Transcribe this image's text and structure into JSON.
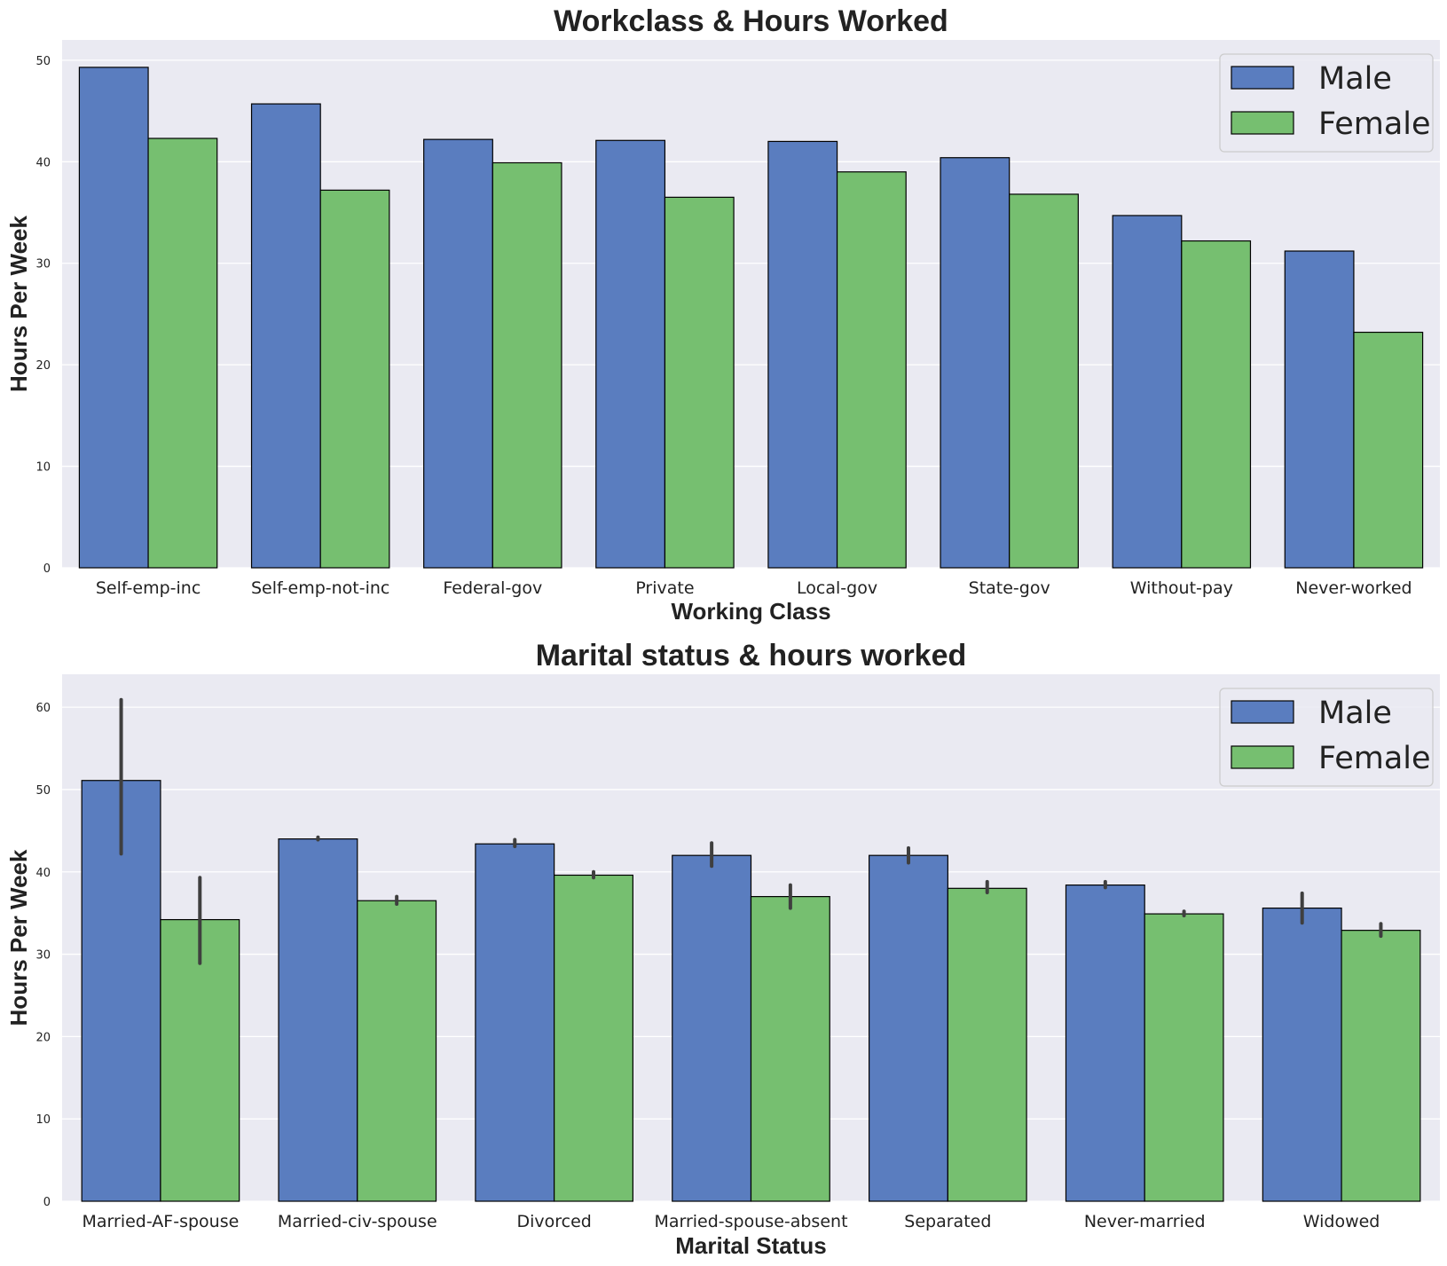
{
  "chart_data": [
    {
      "type": "bar",
      "title": "Workclass & Hours Worked",
      "xlabel": "Working Class",
      "ylabel": "Hours Per Week",
      "ylim": [
        0,
        52
      ],
      "yticks": [
        0,
        10,
        20,
        30,
        40,
        50
      ],
      "grid": true,
      "legend_position": "top-right",
      "categories": [
        "Self-emp-inc",
        "Self-emp-not-inc",
        "Federal-gov",
        "Private",
        "Local-gov",
        "State-gov",
        "Without-pay",
        "Never-worked"
      ],
      "series": [
        {
          "name": "Male",
          "color": "#5a7dbf",
          "values": [
            49.3,
            45.7,
            42.2,
            42.1,
            42.0,
            40.4,
            34.7,
            31.2
          ]
        },
        {
          "name": "Female",
          "color": "#76bf70",
          "values": [
            42.3,
            37.2,
            39.9,
            36.5,
            39.0,
            36.8,
            32.2,
            23.2
          ]
        }
      ]
    },
    {
      "type": "bar",
      "title": "Marital status & hours worked",
      "xlabel": "Marital Status",
      "ylabel": "Hours Per Week",
      "ylim": [
        0,
        64
      ],
      "yticks": [
        0,
        10,
        20,
        30,
        40,
        50,
        60
      ],
      "grid": true,
      "legend_position": "top-right",
      "categories": [
        "Married-AF-spouse",
        "Married-civ-spouse",
        "Divorced",
        "Married-spouse-absent",
        "Separated",
        "Never-married",
        "Widowed"
      ],
      "series": [
        {
          "name": "Male",
          "color": "#5a7dbf",
          "values": [
            51.1,
            44.0,
            43.4,
            42.0,
            42.0,
            38.4,
            35.6
          ],
          "err_low": [
            42.2,
            43.9,
            43.1,
            40.7,
            41.1,
            38.1,
            33.8
          ],
          "err_high": [
            60.9,
            44.2,
            43.9,
            43.5,
            42.9,
            38.8,
            37.4
          ]
        },
        {
          "name": "Female",
          "color": "#76bf70",
          "values": [
            34.2,
            36.5,
            39.6,
            37.0,
            38.0,
            34.9,
            32.9
          ],
          "err_low": [
            28.9,
            36.1,
            39.3,
            35.6,
            37.5,
            34.7,
            32.2
          ],
          "err_high": [
            39.3,
            37.0,
            40.0,
            38.4,
            38.8,
            35.2,
            33.7
          ]
        }
      ]
    }
  ]
}
